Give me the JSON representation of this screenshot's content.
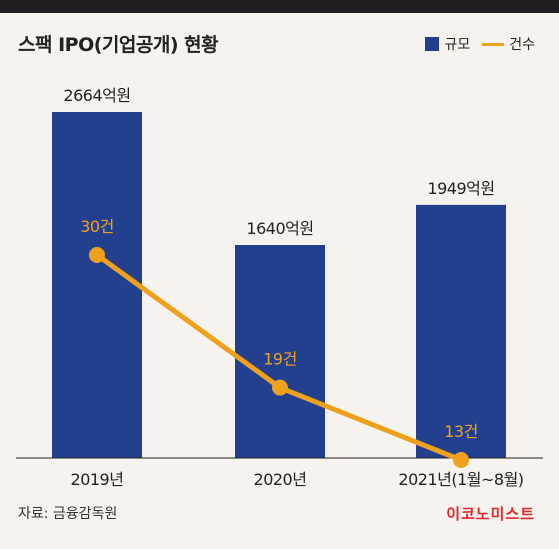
{
  "title": "스팩 IPO(기업공개) 현황",
  "legend": {
    "bar_label": "규모",
    "line_label": "건수"
  },
  "colors": {
    "bar": "#23408e",
    "line": "#f0a11c",
    "text": "#222222",
    "brand": "#e3262e"
  },
  "source": "자료: 금융감독원",
  "brand": "이코노미스트",
  "chart_data": {
    "type": "bar",
    "categories": [
      "2019년",
      "2020년",
      "2021년(1월~8월)"
    ],
    "series": [
      {
        "name": "규모",
        "type": "bar",
        "values": [
          2664,
          1640,
          1949
        ],
        "labels": [
          "2664억원",
          "1640억원",
          "1949억원"
        ]
      },
      {
        "name": "건수",
        "type": "line",
        "values": [
          30,
          19,
          13
        ],
        "labels": [
          "30건",
          "19건",
          "13건"
        ]
      }
    ],
    "grid": false,
    "legend_position": "top-right"
  }
}
